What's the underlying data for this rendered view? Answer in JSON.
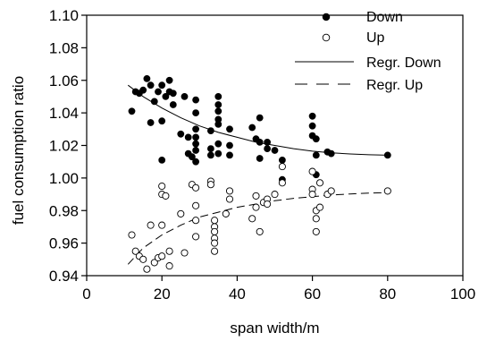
{
  "chart_data": {
    "type": "scatter",
    "title": "",
    "xlabel": "span width/m",
    "ylabel": "fuel consumption ratio",
    "xlim": [
      0,
      100
    ],
    "ylim": [
      0.94,
      1.1
    ],
    "xticks": [
      0,
      20,
      40,
      60,
      80,
      100
    ],
    "xtick_labels": [
      "0",
      "20",
      "40",
      "60",
      "80",
      "100"
    ],
    "yticks": [
      0.94,
      0.96,
      0.98,
      1.0,
      1.02,
      1.04,
      1.06,
      1.08,
      1.1
    ],
    "ytick_labels": [
      "0.94",
      "0.96",
      "0.98",
      "1.00",
      "1.02",
      "1.04",
      "1.06",
      "1.08",
      "1.10"
    ],
    "grid": false,
    "legend_position": "top-right",
    "series": [
      {
        "name": "Down",
        "marker": "filled-circle",
        "color": "#000000",
        "points": [
          [
            12,
            1.041
          ],
          [
            13,
            1.053
          ],
          [
            14,
            1.052
          ],
          [
            15,
            1.054
          ],
          [
            16,
            1.061
          ],
          [
            17,
            1.057
          ],
          [
            17,
            1.034
          ],
          [
            18,
            1.047
          ],
          [
            19,
            1.053
          ],
          [
            20,
            1.057
          ],
          [
            20,
            1.035
          ],
          [
            20,
            1.011
          ],
          [
            21,
            1.05
          ],
          [
            22,
            1.06
          ],
          [
            22,
            1.053
          ],
          [
            23,
            1.052
          ],
          [
            23,
            1.045
          ],
          [
            25,
            1.027
          ],
          [
            26,
            1.05
          ],
          [
            27,
            1.015
          ],
          [
            27,
            1.025
          ],
          [
            28,
            1.013
          ],
          [
            29,
            1.048
          ],
          [
            29,
            1.04
          ],
          [
            29,
            1.03
          ],
          [
            29,
            1.025
          ],
          [
            29,
            1.021
          ],
          [
            29,
            1.017
          ],
          [
            29,
            1.01
          ],
          [
            33,
            1.029
          ],
          [
            33,
            1.018
          ],
          [
            33,
            1.014
          ],
          [
            35,
            1.05
          ],
          [
            35,
            1.045
          ],
          [
            35,
            1.041
          ],
          [
            35,
            1.036
          ],
          [
            35,
            1.033
          ],
          [
            35,
            1.021
          ],
          [
            35,
            1.015
          ],
          [
            38,
            1.03
          ],
          [
            38,
            1.02
          ],
          [
            38,
            1.014
          ],
          [
            44,
            1.031
          ],
          [
            45,
            1.024
          ],
          [
            46,
            1.037
          ],
          [
            46,
            1.022
          ],
          [
            46,
            1.012
          ],
          [
            48,
            1.022
          ],
          [
            48,
            1.018
          ],
          [
            50,
            1.017
          ],
          [
            52,
            1.011
          ],
          [
            52,
            0.999
          ],
          [
            60,
            1.038
          ],
          [
            60,
            1.032
          ],
          [
            60,
            1.026
          ],
          [
            61,
            1.024
          ],
          [
            61,
            1.014
          ],
          [
            61,
            1.002
          ],
          [
            64,
            1.016
          ],
          [
            65,
            1.015
          ],
          [
            80,
            1.014
          ]
        ]
      },
      {
        "name": "Up",
        "marker": "open-circle",
        "color": "#000000",
        "points": [
          [
            12,
            0.965
          ],
          [
            13,
            0.955
          ],
          [
            14,
            0.952
          ],
          [
            15,
            0.95
          ],
          [
            16,
            0.944
          ],
          [
            17,
            0.971
          ],
          [
            18,
            0.948
          ],
          [
            19,
            0.951
          ],
          [
            20,
            0.99
          ],
          [
            20,
            0.995
          ],
          [
            20,
            0.971
          ],
          [
            20,
            0.952
          ],
          [
            21,
            0.989
          ],
          [
            22,
            0.955
          ],
          [
            22,
            0.946
          ],
          [
            25,
            0.978
          ],
          [
            26,
            0.954
          ],
          [
            28,
            0.996
          ],
          [
            29,
            0.994
          ],
          [
            29,
            0.983
          ],
          [
            29,
            0.974
          ],
          [
            29,
            0.964
          ],
          [
            33,
            0.998
          ],
          [
            33,
            0.996
          ],
          [
            34,
            0.974
          ],
          [
            34,
            0.97
          ],
          [
            34,
            0.967
          ],
          [
            34,
            0.963
          ],
          [
            34,
            0.96
          ],
          [
            34,
            0.955
          ],
          [
            37,
            0.978
          ],
          [
            38,
            0.987
          ],
          [
            38,
            0.992
          ],
          [
            44,
            0.975
          ],
          [
            45,
            0.982
          ],
          [
            45,
            0.989
          ],
          [
            46,
            0.967
          ],
          [
            47,
            0.985
          ],
          [
            48,
            0.987
          ],
          [
            48,
            0.984
          ],
          [
            50,
            0.99
          ],
          [
            52,
            0.997
          ],
          [
            52,
            1.007
          ],
          [
            60,
            1.004
          ],
          [
            60,
            0.993
          ],
          [
            60,
            0.99
          ],
          [
            61,
            0.98
          ],
          [
            61,
            0.975
          ],
          [
            61,
            0.967
          ],
          [
            62,
            0.982
          ],
          [
            62,
            0.997
          ],
          [
            64,
            0.99
          ],
          [
            65,
            0.992
          ],
          [
            80,
            0.992
          ]
        ]
      }
    ],
    "regression": [
      {
        "name": "Regr. Down",
        "style": "solid",
        "color": "#000000",
        "points": [
          [
            11,
            1.057
          ],
          [
            15,
            1.05
          ],
          [
            20,
            1.043
          ],
          [
            25,
            1.037
          ],
          [
            30,
            1.032
          ],
          [
            35,
            1.028
          ],
          [
            40,
            1.025
          ],
          [
            45,
            1.022
          ],
          [
            50,
            1.02
          ],
          [
            55,
            1.018
          ],
          [
            60,
            1.0165
          ],
          [
            65,
            1.0155
          ],
          [
            70,
            1.0148
          ],
          [
            75,
            1.0143
          ],
          [
            80,
            1.014
          ]
        ]
      },
      {
        "name": "Regr. Up",
        "style": "dashed",
        "color": "#000000",
        "points": [
          [
            11,
            0.947
          ],
          [
            15,
            0.957
          ],
          [
            20,
            0.965
          ],
          [
            25,
            0.971
          ],
          [
            30,
            0.976
          ],
          [
            35,
            0.979
          ],
          [
            40,
            0.982
          ],
          [
            45,
            0.984
          ],
          [
            50,
            0.986
          ],
          [
            55,
            0.9875
          ],
          [
            60,
            0.9885
          ],
          [
            65,
            0.9895
          ],
          [
            70,
            0.9902
          ],
          [
            75,
            0.9907
          ],
          [
            80,
            0.991
          ]
        ]
      }
    ]
  }
}
